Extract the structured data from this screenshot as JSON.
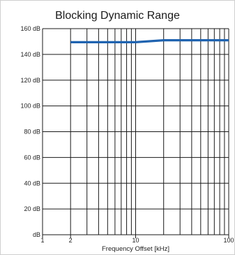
{
  "chart_data": {
    "type": "line",
    "title": "Blocking Dynamic Range",
    "xlabel": "Frequency Offset [kHz]",
    "ylabel": "",
    "x_scale": "log",
    "xlim": [
      1,
      100
    ],
    "ylim": [
      0,
      160
    ],
    "x_tick_labels": [
      "1",
      "2",
      "10",
      "100"
    ],
    "y_tick_labels": [
      "dB",
      "20 dB",
      "40 dB",
      "60 dB",
      "80 dB",
      "100 dB",
      "120 dB",
      "140 dB",
      "160 dB"
    ],
    "grid": true,
    "series": [
      {
        "x": [
          2,
          5,
          10,
          20,
          50,
          100
        ],
        "y": [
          149.5,
          149.5,
          149.5,
          151,
          151,
          151
        ],
        "color": "#1f63b0"
      }
    ]
  }
}
